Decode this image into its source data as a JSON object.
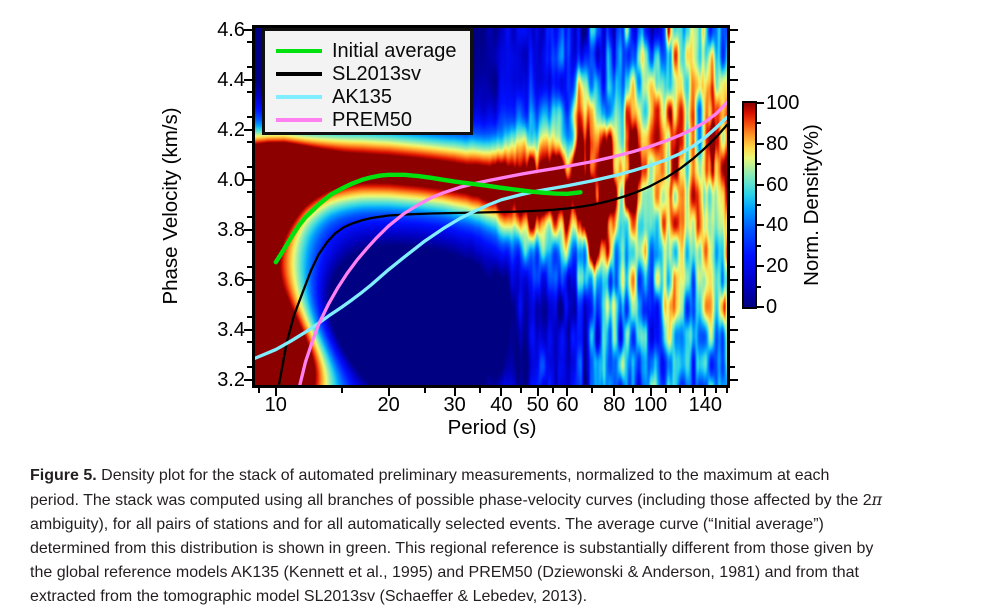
{
  "figure": {
    "caption": {
      "label": "Figure 5.",
      "line1_rest": " Density plot for the stack of automated preliminary measurements, normalized to the maximum at each",
      "line2_main": "period. The stack was computed using all branches of possible phase-velocity curves (including those affected by the 2",
      "line2_pi": "π",
      "line3": "ambiguity), for all pairs of stations and for all automatically selected events. The average curve (“Initial average”)",
      "line4": "determined from this distribution is shown in green. This regional reference is substantially different from those given by",
      "line5": "the global reference models AK135 (Kennett et al., 1995) and PREM50 (Dziewonski & Anderson, 1981) and from that",
      "line6": "extracted from the tomographic model SL2013sv (Schaeffer & Lebedev, 2013)."
    }
  },
  "chart_data": {
    "type": "heatmap",
    "title": "",
    "xlabel": "Period (s)",
    "ylabel": "Phase Velocity (km/s)",
    "x_scale": "log",
    "xlim": [
      8.8,
      160
    ],
    "ylim": [
      3.178,
      4.608
    ],
    "x_major_ticks": [
      10,
      20,
      30,
      40,
      50,
      60,
      80,
      100,
      140
    ],
    "x_tick_labels": [
      "10",
      "20",
      "30",
      "40",
      "50",
      "60",
      "80",
      "100",
      "140"
    ],
    "x_minor_ticks": [
      9,
      15,
      25,
      35,
      45,
      55,
      70,
      90,
      110,
      120,
      130,
      150,
      160
    ],
    "y_major_ticks": [
      3.2,
      3.4,
      3.6,
      3.8,
      4.0,
      4.2,
      4.4,
      4.6
    ],
    "y_minor_step": 0.05,
    "grid": false,
    "legend_position": "upper-left",
    "colorbar": {
      "title": "Norm. Density(%)",
      "range": [
        0,
        100
      ],
      "major_ticks": [
        0,
        20,
        40,
        60,
        80,
        100
      ],
      "minor_ticks": [
        10,
        30,
        50,
        70,
        90
      ]
    },
    "colormap_stops": [
      [
        0.0,
        "#000082"
      ],
      [
        0.12,
        "#0000c8"
      ],
      [
        0.25,
        "#0010ff"
      ],
      [
        0.38,
        "#0055ff"
      ],
      [
        0.48,
        "#00a0ff"
      ],
      [
        0.55,
        "#2ad2e8"
      ],
      [
        0.62,
        "#6ee6c8"
      ],
      [
        0.68,
        "#aef0a0"
      ],
      [
        0.73,
        "#e8f878"
      ],
      [
        0.78,
        "#ffd84a"
      ],
      [
        0.84,
        "#ff9828"
      ],
      [
        0.9,
        "#f44b0e"
      ],
      [
        0.95,
        "#d81000"
      ],
      [
        1.0,
        "#8c0000"
      ]
    ],
    "series": [
      {
        "name": "Initial average",
        "color": "#00e10e",
        "width": 4.4,
        "points": [
          [
            10,
            3.67
          ],
          [
            10.5,
            3.72
          ],
          [
            11,
            3.77
          ],
          [
            11.5,
            3.815
          ],
          [
            12,
            3.85
          ],
          [
            13,
            3.9
          ],
          [
            14,
            3.94
          ],
          [
            15,
            3.965
          ],
          [
            16,
            3.985
          ],
          [
            17,
            4.0
          ],
          [
            18,
            4.01
          ],
          [
            19,
            4.017
          ],
          [
            20,
            4.02
          ],
          [
            22,
            4.02
          ],
          [
            24,
            4.015
          ],
          [
            26,
            4.008
          ],
          [
            28,
            4.0
          ],
          [
            30,
            3.993
          ],
          [
            33,
            3.985
          ],
          [
            36,
            3.978
          ],
          [
            40,
            3.968
          ],
          [
            44,
            3.96
          ],
          [
            48,
            3.953
          ],
          [
            52,
            3.948
          ],
          [
            56,
            3.945
          ],
          [
            60,
            3.944
          ],
          [
            65,
            3.95
          ]
        ]
      },
      {
        "name": "SL2013sv",
        "color": "#000000",
        "width": 2.3,
        "points": [
          [
            10.2,
            3.18
          ],
          [
            10.7,
            3.35
          ],
          [
            11.2,
            3.46
          ],
          [
            11.8,
            3.55
          ],
          [
            12.4,
            3.635
          ],
          [
            13,
            3.7
          ],
          [
            13.7,
            3.75
          ],
          [
            14.4,
            3.785
          ],
          [
            15.2,
            3.81
          ],
          [
            16,
            3.825
          ],
          [
            17,
            3.838
          ],
          [
            18,
            3.847
          ],
          [
            20,
            3.857
          ],
          [
            23,
            3.862
          ],
          [
            26,
            3.865
          ],
          [
            30,
            3.867
          ],
          [
            35,
            3.869
          ],
          [
            40,
            3.871
          ],
          [
            45,
            3.873
          ],
          [
            50,
            3.876
          ],
          [
            55,
            3.88
          ],
          [
            60,
            3.885
          ],
          [
            65,
            3.892
          ],
          [
            70,
            3.9
          ],
          [
            75,
            3.91
          ],
          [
            80,
            3.921
          ],
          [
            85,
            3.933
          ],
          [
            90,
            3.946
          ],
          [
            95,
            3.96
          ],
          [
            100,
            3.975
          ],
          [
            110,
            4.008
          ],
          [
            120,
            4.045
          ],
          [
            130,
            4.085
          ],
          [
            140,
            4.128
          ],
          [
            150,
            4.172
          ],
          [
            160,
            4.22
          ]
        ]
      },
      {
        "name": "AK135",
        "color": "#80eeff",
        "width": 3.3,
        "points": [
          [
            8.8,
            3.285
          ],
          [
            10,
            3.32
          ],
          [
            11,
            3.355
          ],
          [
            12,
            3.39
          ],
          [
            13,
            3.425
          ],
          [
            14,
            3.46
          ],
          [
            15,
            3.49
          ],
          [
            16,
            3.52
          ],
          [
            17,
            3.55
          ],
          [
            18,
            3.58
          ],
          [
            20,
            3.64
          ],
          [
            22,
            3.69
          ],
          [
            25,
            3.755
          ],
          [
            28,
            3.805
          ],
          [
            31,
            3.845
          ],
          [
            34,
            3.875
          ],
          [
            37,
            3.9
          ],
          [
            40,
            3.92
          ],
          [
            45,
            3.94
          ],
          [
            50,
            3.955
          ],
          [
            55,
            3.966
          ],
          [
            60,
            3.976
          ],
          [
            70,
            3.996
          ],
          [
            80,
            4.016
          ],
          [
            90,
            4.037
          ],
          [
            100,
            4.058
          ],
          [
            110,
            4.08
          ],
          [
            120,
            4.105
          ],
          [
            130,
            4.135
          ],
          [
            140,
            4.17
          ],
          [
            150,
            4.21
          ],
          [
            160,
            4.25
          ]
        ]
      },
      {
        "name": "PREM50",
        "color": "#ff80f0",
        "width": 3.3,
        "points": [
          [
            11.6,
            3.18
          ],
          [
            12,
            3.27
          ],
          [
            12.5,
            3.35
          ],
          [
            13,
            3.42
          ],
          [
            13.8,
            3.5
          ],
          [
            14.6,
            3.565
          ],
          [
            15.5,
            3.625
          ],
          [
            16.5,
            3.68
          ],
          [
            17.5,
            3.725
          ],
          [
            18.5,
            3.765
          ],
          [
            20,
            3.815
          ],
          [
            22,
            3.865
          ],
          [
            24,
            3.9
          ],
          [
            26,
            3.928
          ],
          [
            28,
            3.948
          ],
          [
            31,
            3.97
          ],
          [
            34,
            3.985
          ],
          [
            37,
            3.997
          ],
          [
            40,
            4.007
          ],
          [
            45,
            4.022
          ],
          [
            50,
            4.034
          ],
          [
            55,
            4.044
          ],
          [
            60,
            4.054
          ],
          [
            70,
            4.073
          ],
          [
            80,
            4.093
          ],
          [
            90,
            4.113
          ],
          [
            100,
            4.134
          ],
          [
            110,
            4.156
          ],
          [
            120,
            4.179
          ],
          [
            130,
            4.204
          ],
          [
            140,
            4.232
          ],
          [
            150,
            4.266
          ],
          [
            160,
            4.31
          ]
        ]
      }
    ],
    "density_field_model": {
      "background": 0.13,
      "ridge": [
        [
          8.8,
          3.84,
          0.26
        ],
        [
          9.5,
          3.97,
          0.17
        ],
        [
          10.5,
          4.025,
          0.135
        ],
        [
          12,
          4.04,
          0.12
        ],
        [
          14,
          4.048,
          0.115
        ],
        [
          17,
          4.05,
          0.112
        ],
        [
          20,
          4.045,
          0.11
        ],
        [
          24,
          4.033,
          0.108
        ],
        [
          28,
          4.02,
          0.108
        ],
        [
          32,
          4.005,
          0.112
        ],
        [
          36,
          3.99,
          0.12
        ],
        [
          40,
          3.976,
          0.135
        ],
        [
          45,
          3.963,
          0.155
        ],
        [
          50,
          3.956,
          0.175
        ],
        [
          60,
          3.953,
          0.205
        ],
        [
          70,
          3.958,
          0.235
        ],
        [
          80,
          3.968,
          0.27
        ],
        [
          100,
          3.99,
          0.33
        ],
        [
          120,
          4.012,
          0.39
        ],
        [
          140,
          4.032,
          0.44
        ],
        [
          160,
          4.05,
          0.48
        ]
      ],
      "ridge_amp": {
        "base": 1.0,
        "drop": 0.55,
        "from": 0.55,
        "to": 1.0
      },
      "left_column": {
        "center_logp": 0.945,
        "sigma_logp": 0.1,
        "v_top": 4.13,
        "v_soft": 0.035,
        "strength": 0.95
      },
      "bottom_left_blob": {
        "logp": 1.04,
        "v": 3.3,
        "sigma_logp": 0.13,
        "sigma_v": 0.18,
        "strength": 1.1
      },
      "holes": [
        {
          "logp": 1.3,
          "v": 3.42,
          "sigma_logp": 0.17,
          "sigma_v": 0.155,
          "strength": 1.25
        },
        {
          "logp": 1.18,
          "v": 4.5,
          "sigma_logp": 0.22,
          "sigma_v": 0.16,
          "strength": 0.5
        }
      ],
      "noise": {
        "amp": 0.58,
        "amp_from": 0.4,
        "amp_to": 0.75,
        "baseline": 0.26,
        "baseline_from": 0.45,
        "baseline_to": 0.92,
        "octaves": [
          [
            6,
            28,
            0.42
          ],
          [
            13,
            70,
            0.36
          ],
          [
            3.2,
            130,
            0.22
          ]
        ]
      }
    }
  }
}
